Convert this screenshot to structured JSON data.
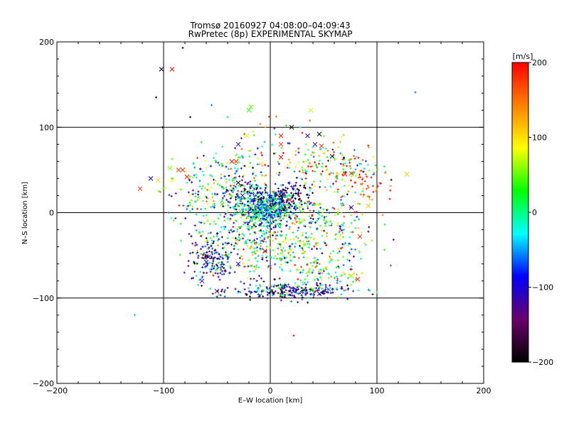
{
  "chart_data": {
    "type": "scatter",
    "title": "Tromsø 20160927 04:08:00–04:09:43",
    "subtitle": "RwPretec (8p) EXPERIMENTAL SKYMAP",
    "xlabel": "E–W location [km]",
    "ylabel": "N–S location [km]",
    "xlim": [
      -200,
      200
    ],
    "ylim": [
      -200,
      200
    ],
    "xticks": [
      "−200",
      "−100",
      "0",
      "100",
      "200"
    ],
    "yticks": [
      "−200",
      "−100",
      "0",
      "100",
      "200"
    ],
    "grid_lines_x": [
      -100,
      0,
      100
    ],
    "grid_lines_y": [
      -100,
      0,
      100
    ],
    "colorbar": {
      "label": "[m/s]",
      "range": [
        -200,
        200
      ],
      "ticks": [
        "200",
        "100",
        "0",
        "−100",
        "−200"
      ],
      "colormap": [
        "#000000",
        "#6a006a",
        "#0000ff",
        "#00ffff",
        "#00ff00",
        "#ffff00",
        "#ff8000",
        "#ff0000"
      ]
    },
    "point_density": 1,
    "crosses": [
      {
        "x": -102,
        "y": 168,
        "v": -190
      },
      {
        "x": -92,
        "y": 168,
        "v": 200
      },
      {
        "x": -122,
        "y": 28,
        "v": 180
      },
      {
        "x": -112,
        "y": 40,
        "v": -100
      },
      {
        "x": -105,
        "y": 38,
        "v": 110
      },
      {
        "x": -92,
        "y": 38,
        "v": 90
      },
      {
        "x": -86,
        "y": 50,
        "v": 170
      },
      {
        "x": -82,
        "y": 50,
        "v": 180
      },
      {
        "x": -78,
        "y": 42,
        "v": 190
      },
      {
        "x": -94,
        "y": 52,
        "v": 60
      },
      {
        "x": -60,
        "y": -58,
        "v": -110
      },
      {
        "x": -64,
        "y": -80,
        "v": -120
      },
      {
        "x": -50,
        "y": -92,
        "v": -130
      },
      {
        "x": -58,
        "y": -52,
        "v": -150
      },
      {
        "x": -20,
        "y": 120,
        "v": 40
      },
      {
        "x": -18,
        "y": 124,
        "v": 50
      },
      {
        "x": 38,
        "y": 120,
        "v": 70
      },
      {
        "x": -22,
        "y": 90,
        "v": 80
      },
      {
        "x": 20,
        "y": 100,
        "v": -200
      },
      {
        "x": 10,
        "y": 90,
        "v": 190
      },
      {
        "x": 10,
        "y": 80,
        "v": 180
      },
      {
        "x": 35,
        "y": 90,
        "v": -100
      },
      {
        "x": 46,
        "y": 92,
        "v": -200
      },
      {
        "x": 48,
        "y": 78,
        "v": 180
      },
      {
        "x": 42,
        "y": 80,
        "v": -160
      },
      {
        "x": 58,
        "y": 66,
        "v": -190
      },
      {
        "x": 70,
        "y": 45,
        "v": 190
      },
      {
        "x": 76,
        "y": 46,
        "v": 180
      },
      {
        "x": 10,
        "y": 65,
        "v": 200
      },
      {
        "x": -30,
        "y": 80,
        "v": -110
      },
      {
        "x": -36,
        "y": 60,
        "v": 190
      },
      {
        "x": -32,
        "y": 60,
        "v": 180
      },
      {
        "x": 128,
        "y": 45,
        "v": 110
      },
      {
        "x": 92,
        "y": 8,
        "v": 110
      },
      {
        "x": 76,
        "y": 6,
        "v": -110
      },
      {
        "x": 82,
        "y": -78,
        "v": 190
      },
      {
        "x": 76,
        "y": -74,
        "v": 60
      },
      {
        "x": 55,
        "y": -90,
        "v": -50
      },
      {
        "x": 46,
        "y": -95,
        "v": -120
      },
      {
        "x": 40,
        "y": -90,
        "v": 40
      },
      {
        "x": 84,
        "y": -28,
        "v": 180
      },
      {
        "x": -40,
        "y": -50,
        "v": 20
      },
      {
        "x": -30,
        "y": -60,
        "v": -80
      },
      {
        "x": -26,
        "y": 20,
        "v": -110
      },
      {
        "x": -30,
        "y": 35,
        "v": -190
      },
      {
        "x": -45,
        "y": 10,
        "v": 40
      },
      {
        "x": 10,
        "y": 20,
        "v": -200
      },
      {
        "x": 18,
        "y": 15,
        "v": 160
      },
      {
        "x": -5,
        "y": -45,
        "v": 200
      }
    ],
    "clusters": [
      {
        "x": -5,
        "y": 5,
        "sx": 14,
        "sy": 10,
        "n": 520,
        "v": -40,
        "sv": 60
      },
      {
        "x": 15,
        "y": 18,
        "sx": 12,
        "sy": 10,
        "n": 160,
        "v": -150,
        "sv": 60
      },
      {
        "x": -20,
        "y": 20,
        "sx": 14,
        "sy": 10,
        "n": 90,
        "v": -90,
        "sv": 70
      },
      {
        "x": 20,
        "y": -92,
        "sx": 28,
        "sy": 5,
        "n": 250,
        "v": -120,
        "sv": 70
      },
      {
        "x": 55,
        "y": -70,
        "sx": 15,
        "sy": 8,
        "n": 60,
        "v": 20,
        "sv": 80
      },
      {
        "x": -55,
        "y": -55,
        "sx": 10,
        "sy": 14,
        "n": 140,
        "v": -110,
        "sv": 70
      },
      {
        "x": 20,
        "y": -30,
        "sx": 35,
        "sy": 22,
        "n": 320,
        "v": 0,
        "sv": 90
      },
      {
        "x": 60,
        "y": 55,
        "sx": 22,
        "sy": 14,
        "n": 170,
        "v": 80,
        "sv": 120
      },
      {
        "x": 85,
        "y": 30,
        "sx": 12,
        "sy": 10,
        "n": 40,
        "v": 170,
        "sv": 40
      },
      {
        "x": -40,
        "y": 40,
        "sx": 22,
        "sy": 18,
        "n": 110,
        "v": 0,
        "sv": 100
      },
      {
        "x": -65,
        "y": 15,
        "sx": 20,
        "sy": 16,
        "n": 80,
        "v": 0,
        "sv": 90
      },
      {
        "x": 60,
        "y": -10,
        "sx": 20,
        "sy": 18,
        "n": 90,
        "v": 40,
        "sv": 110
      },
      {
        "x": -10,
        "y": 70,
        "sx": 20,
        "sy": 18,
        "n": 60,
        "v": 30,
        "sv": 110
      },
      {
        "x": 0,
        "y": -55,
        "sx": 28,
        "sy": 15,
        "n": 100,
        "v": 20,
        "sv": 100
      },
      {
        "x": -30,
        "y": -20,
        "sx": 20,
        "sy": 18,
        "n": 120,
        "v": -30,
        "sv": 90
      }
    ],
    "isolated_points": [
      {
        "x": -107,
        "y": 135,
        "v": -200
      },
      {
        "x": -82,
        "y": 193,
        "v": -200
      },
      {
        "x": -75,
        "y": 112,
        "v": -200
      },
      {
        "x": -55,
        "y": 126,
        "v": -60
      },
      {
        "x": -40,
        "y": 112,
        "v": -40
      },
      {
        "x": 136,
        "y": 141,
        "v": -60
      },
      {
        "x": -127,
        "y": -120,
        "v": -40
      },
      {
        "x": 22,
        "y": -144,
        "v": 200
      },
      {
        "x": 112,
        "y": 16,
        "v": 200
      },
      {
        "x": 113,
        "y": -62,
        "v": 180
      },
      {
        "x": -101,
        "y": 100,
        "v": -200
      }
    ]
  }
}
